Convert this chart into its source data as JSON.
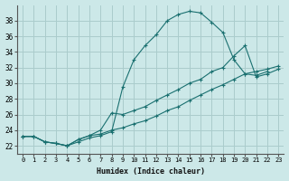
{
  "xlabel": "Humidex (Indice chaleur)",
  "ylabel": "",
  "bg_color": "#cce8e8",
  "grid_color": "#aacccc",
  "line_color": "#1a7070",
  "xlim": [
    -0.5,
    23.5
  ],
  "ylim": [
    21.0,
    40.0
  ],
  "xticks": [
    0,
    1,
    2,
    3,
    4,
    5,
    6,
    7,
    8,
    9,
    10,
    11,
    12,
    13,
    14,
    15,
    16,
    17,
    18,
    19,
    20,
    21,
    22,
    23
  ],
  "yticks": [
    22,
    24,
    26,
    28,
    30,
    32,
    34,
    36,
    38
  ],
  "curve1_x": [
    0,
    1,
    2,
    3,
    4,
    5,
    6,
    7,
    8,
    9,
    10,
    11,
    12,
    13,
    14,
    15,
    16,
    17,
    18,
    19,
    20,
    21,
    22
  ],
  "curve1_y": [
    23.2,
    23.2,
    22.5,
    22.3,
    22.0,
    22.5,
    23.0,
    23.3,
    23.8,
    29.5,
    33.0,
    34.8,
    36.2,
    38.0,
    38.8,
    39.2,
    39.0,
    37.8,
    36.5,
    33.0,
    31.2,
    31.0,
    31.5
  ],
  "curve2_x": [
    0,
    1,
    2,
    3,
    4,
    5,
    6,
    7,
    8,
    9,
    10,
    11,
    12,
    13,
    14,
    15,
    16,
    17,
    18,
    19,
    20,
    21,
    22,
    23
  ],
  "curve2_y": [
    23.2,
    23.2,
    22.5,
    22.3,
    22.0,
    22.8,
    23.3,
    24.0,
    26.2,
    26.0,
    26.5,
    27.0,
    27.8,
    28.5,
    29.2,
    30.0,
    30.5,
    31.5,
    32.0,
    33.5,
    34.8,
    30.8,
    31.2,
    31.8
  ],
  "curve3_x": [
    0,
    1,
    2,
    3,
    4,
    5,
    6,
    7,
    8,
    9,
    10,
    11,
    12,
    13,
    14,
    15,
    16,
    17,
    18,
    19,
    20,
    21,
    22,
    23
  ],
  "curve3_y": [
    23.2,
    23.2,
    22.5,
    22.3,
    22.0,
    22.8,
    23.3,
    23.5,
    24.0,
    24.3,
    24.8,
    25.2,
    25.8,
    26.5,
    27.0,
    27.8,
    28.5,
    29.2,
    29.8,
    30.5,
    31.2,
    31.5,
    31.8,
    32.2
  ]
}
